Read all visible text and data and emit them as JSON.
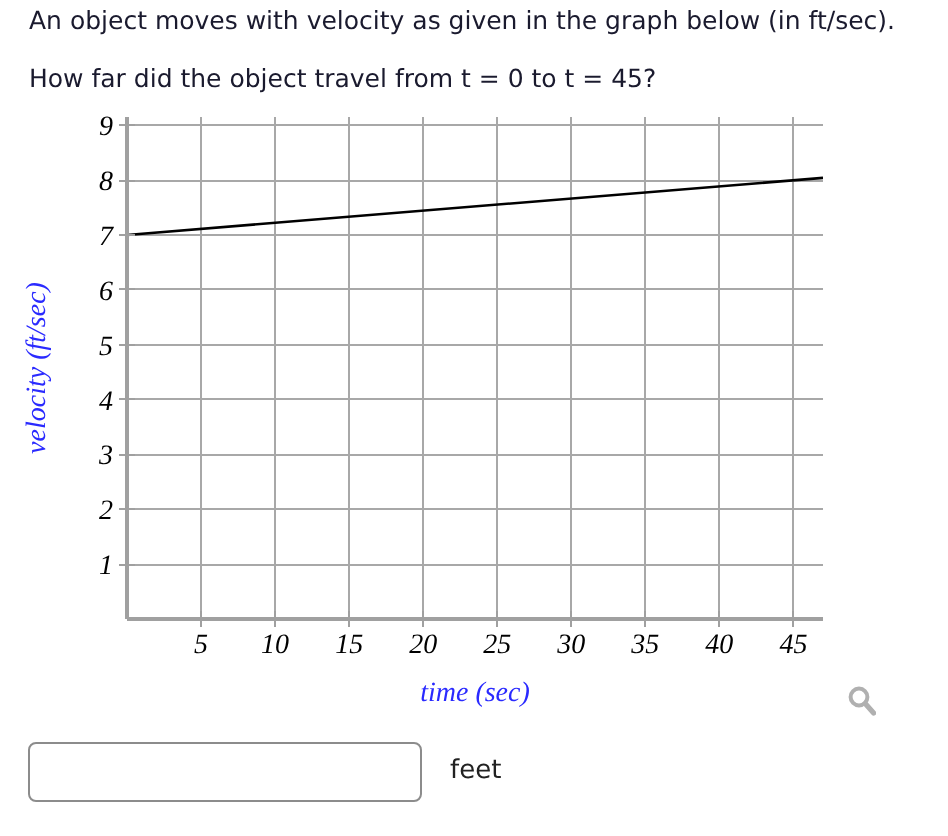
{
  "chart_data": {
    "type": "line",
    "title": "An object moves with velocity as given in the graph below (in ft/sec).",
    "subtitle": "How far did the object travel from t = 0 to t = 45?",
    "xlabel": "time (sec)",
    "ylabel": "velocity (ft/sec)",
    "x": [
      0,
      47
    ],
    "series": [
      {
        "color": "#000000",
        "values": [
          7,
          8.04
        ]
      }
    ],
    "xlim": [
      0,
      47
    ],
    "ylim": [
      0,
      9.15
    ],
    "xticks": [
      5,
      10,
      15,
      20,
      25,
      30,
      35,
      40,
      45
    ],
    "yticks": [
      1,
      2,
      3,
      4,
      5,
      6,
      7,
      8,
      9
    ],
    "grid": true,
    "annotations": [
      "feet"
    ]
  }
}
